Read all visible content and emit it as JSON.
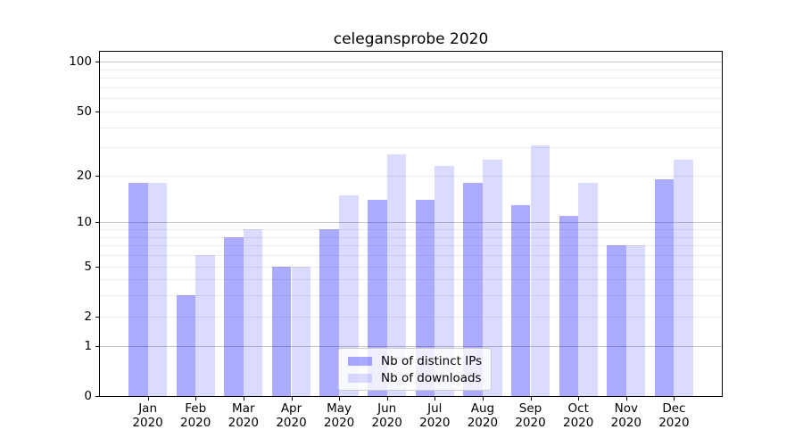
{
  "chart_data": {
    "type": "bar",
    "title": "celegansprobe 2020",
    "categories": [
      "Jan",
      "Feb",
      "Mar",
      "Apr",
      "May",
      "Jun",
      "Jul",
      "Aug",
      "Sep",
      "Oct",
      "Nov",
      "Dec"
    ],
    "category_year": "2020",
    "series": [
      {
        "name": "Nb of distinct IPs",
        "color": "rgba(0,0,255,0.33)",
        "values": [
          18,
          3,
          8,
          5,
          9,
          14,
          14,
          18,
          13,
          11,
          7,
          19
        ]
      },
      {
        "name": "Nb of downloads",
        "color": "rgba(0,0,255,0.14)",
        "values": [
          18,
          6,
          9,
          5,
          15,
          27,
          23,
          25,
          31,
          18,
          7,
          25
        ]
      }
    ],
    "y_axis": {
      "scale": "log1p",
      "min": 0,
      "max": 115,
      "labeled_ticks": [
        0,
        1,
        2,
        5,
        10,
        20,
        50,
        100
      ],
      "major_gridlines": [
        1,
        10,
        100
      ],
      "minor_gridlines": [
        2,
        3,
        4,
        5,
        6,
        7,
        8,
        9,
        20,
        30,
        40,
        50,
        60,
        70,
        80,
        90
      ]
    },
    "legend": {
      "position": "lower center",
      "labels": [
        "Nb of distinct IPs",
        "Nb of downloads"
      ]
    },
    "colors": {
      "major_grid": "#c6c6c6",
      "minor_grid": "#ececec",
      "spine": "#000000",
      "text": "#000000"
    },
    "layout": {
      "grid": true,
      "legend_frame": true
    }
  }
}
